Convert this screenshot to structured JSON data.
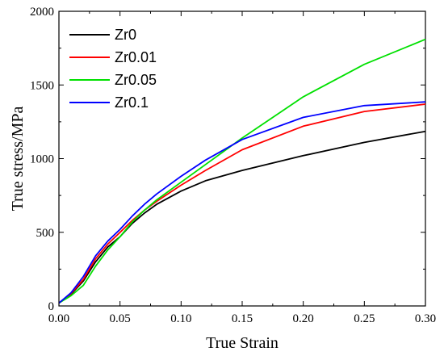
{
  "chart_data": {
    "type": "line",
    "xlabel": "True Strain",
    "ylabel": "True stress/MPa",
    "xlim": [
      0.0,
      0.3
    ],
    "ylim": [
      0,
      2000
    ],
    "xticks": [
      0.0,
      0.05,
      0.1,
      0.15,
      0.2,
      0.25,
      0.3
    ],
    "xtick_labels": [
      "0.00",
      "0.05",
      "0.10",
      "0.15",
      "0.20",
      "0.25",
      "0.30"
    ],
    "yticks": [
      0,
      500,
      1000,
      1500,
      2000
    ],
    "ytick_labels": [
      "0",
      "500",
      "1000",
      "1500",
      "2000"
    ],
    "grid": false,
    "legend_position": "top-left",
    "series": [
      {
        "name": "Zr0",
        "color": "#000000",
        "x": [
          0.0,
          0.01,
          0.02,
          0.03,
          0.04,
          0.05,
          0.06,
          0.07,
          0.08,
          0.1,
          0.12,
          0.15,
          0.2,
          0.25,
          0.3
        ],
        "y": [
          20,
          80,
          170,
          300,
          400,
          470,
          560,
          630,
          690,
          780,
          850,
          920,
          1020,
          1110,
          1185
        ]
      },
      {
        "name": "Zr0.01",
        "color": "#ff0000",
        "x": [
          0.0,
          0.01,
          0.02,
          0.03,
          0.04,
          0.05,
          0.06,
          0.07,
          0.08,
          0.1,
          0.12,
          0.15,
          0.2,
          0.25,
          0.3
        ],
        "y": [
          20,
          85,
          180,
          320,
          420,
          500,
          580,
          650,
          710,
          820,
          920,
          1060,
          1220,
          1320,
          1370
        ]
      },
      {
        "name": "Zr0.05",
        "color": "#00e000",
        "x": [
          0.0,
          0.01,
          0.02,
          0.03,
          0.04,
          0.05,
          0.06,
          0.07,
          0.08,
          0.1,
          0.12,
          0.15,
          0.2,
          0.25,
          0.3
        ],
        "y": [
          20,
          70,
          140,
          270,
          380,
          470,
          570,
          650,
          720,
          840,
          960,
          1140,
          1420,
          1640,
          1810
        ]
      },
      {
        "name": "Zr0.1",
        "color": "#0000ff",
        "x": [
          0.0,
          0.01,
          0.02,
          0.03,
          0.04,
          0.05,
          0.06,
          0.07,
          0.08,
          0.1,
          0.12,
          0.15,
          0.2,
          0.25,
          0.3
        ],
        "y": [
          20,
          90,
          200,
          340,
          440,
          520,
          610,
          690,
          760,
          880,
          990,
          1130,
          1280,
          1360,
          1385
        ]
      }
    ]
  }
}
